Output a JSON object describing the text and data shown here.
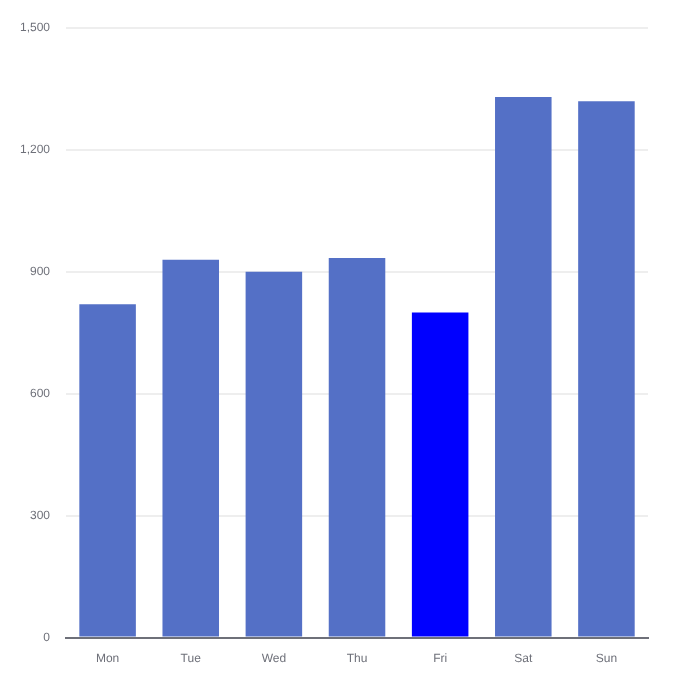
{
  "chart_data": {
    "type": "bar",
    "categories": [
      "Mon",
      "Tue",
      "Wed",
      "Thu",
      "Fri",
      "Sat",
      "Sun"
    ],
    "values": [
      820,
      930,
      900,
      934,
      800,
      1330,
      1320
    ],
    "colors": [
      "#5470c6",
      "#5470c6",
      "#5470c6",
      "#5470c6",
      "#0000ff",
      "#5470c6",
      "#5470c6"
    ],
    "ylim": [
      0,
      1500
    ],
    "yticks": [
      {
        "value": 0,
        "label": "0"
      },
      {
        "value": 300,
        "label": "300"
      },
      {
        "value": 600,
        "label": "600"
      },
      {
        "value": 900,
        "label": "900"
      },
      {
        "value": 1200,
        "label": "1,200"
      },
      {
        "value": 1500,
        "label": "1,500"
      }
    ],
    "grid": "y"
  }
}
